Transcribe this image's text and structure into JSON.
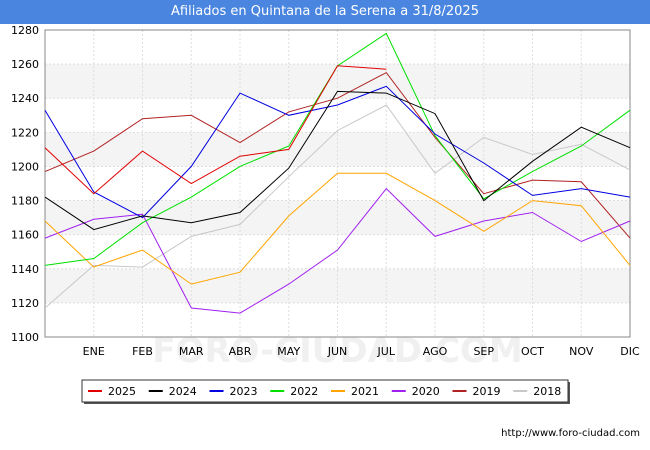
{
  "chart_data": {
    "type": "line",
    "title": "Afiliados en Quintana de la Serena a 31/8/2025",
    "categories": [
      "",
      "ENE",
      "FEB",
      "MAR",
      "ABR",
      "MAY",
      "JUN",
      "JUL",
      "AGO",
      "SEP",
      "OCT",
      "NOV",
      "DIC"
    ],
    "ylim": [
      1100,
      1280
    ],
    "yticks": [
      1100,
      1120,
      1140,
      1160,
      1180,
      1200,
      1220,
      1240,
      1260,
      1280
    ],
    "grid": true,
    "legend_position": "bottom",
    "series": [
      {
        "name": "2025",
        "color": "#e00000",
        "values": [
          1211,
          1184,
          1209,
          1190,
          1206,
          1210,
          1259,
          1257,
          null,
          null,
          null,
          null,
          null
        ]
      },
      {
        "name": "2024",
        "color": "#000000",
        "values": [
          1182,
          1163,
          1171,
          1167,
          1173,
          1199,
          1244,
          1243,
          1231,
          1180,
          1203,
          1223,
          1211
        ]
      },
      {
        "name": "2023",
        "color": "#0000e0",
        "values": [
          1233,
          1185,
          1170,
          1200,
          1243,
          1230,
          1236,
          1247,
          1219,
          1202,
          1183,
          1187,
          1182
        ]
      },
      {
        "name": "2022",
        "color": "#00e000",
        "values": [
          1142,
          1146,
          1167,
          1182,
          1200,
          1212,
          1259,
          1278,
          1218,
          1181,
          1197,
          1212,
          1233
        ]
      },
      {
        "name": "2021",
        "color": "#ffa500",
        "values": [
          1168,
          1141,
          1151,
          1131,
          1138,
          1171,
          1196,
          1196,
          1180,
          1162,
          1180,
          1177,
          1142
        ]
      },
      {
        "name": "2020",
        "color": "#a020f0",
        "values": [
          1158,
          1169,
          1172,
          1117,
          1114,
          1131,
          1151,
          1187,
          1159,
          1168,
          1173,
          1156,
          1168
        ]
      },
      {
        "name": "2019",
        "color": "#b22222",
        "values": [
          1197,
          1209,
          1228,
          1230,
          1214,
          1232,
          1240,
          1255,
          1217,
          1184,
          1192,
          1191,
          1158
        ]
      },
      {
        "name": "2018",
        "color": "#c8c8c8",
        "values": [
          1117,
          1142,
          1141,
          1159,
          1166,
          1194,
          1221,
          1236,
          1196,
          1217,
          1207,
          1213,
          1198
        ]
      }
    ]
  },
  "footer": {
    "source": "http://www.foro-ciudad.com"
  }
}
